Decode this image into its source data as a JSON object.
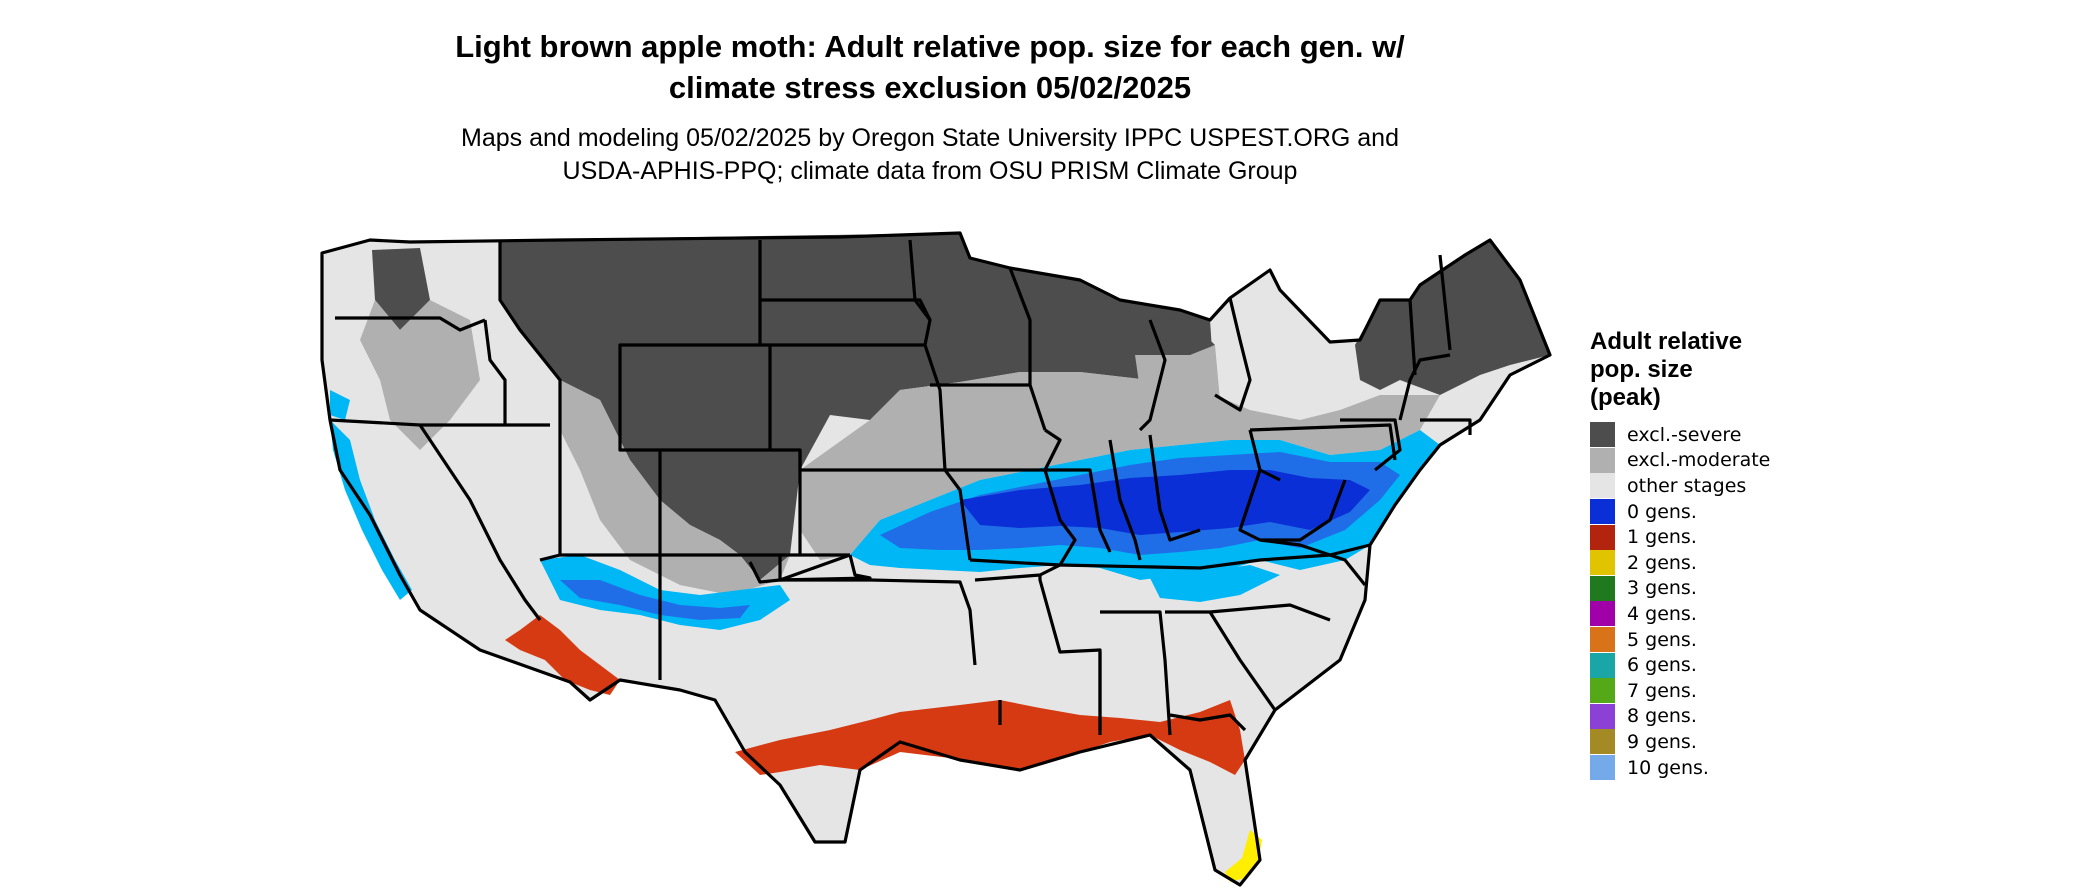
{
  "title": "Light brown apple moth: Adult relative pop. size for each gen. w/\nclimate stress exclusion 05/02/2025",
  "subtitle": "Maps and modeling 05/02/2025 by Oregon State University IPPC USPEST.ORG and\nUSDA-APHIS-PPQ; climate data from OSU PRISM Climate Group",
  "legend": {
    "title": "Adult relative\npop. size\n(peak)",
    "items": [
      {
        "label": "excl.-severe",
        "color": "#4d4d4d"
      },
      {
        "label": "excl.-moderate",
        "color": "#b0b0b0"
      },
      {
        "label": "other stages",
        "color": "#e5e5e5"
      },
      {
        "label": "0 gens.",
        "color": "#0a2fd6"
      },
      {
        "label": "1 gens.",
        "color": "#b3240f"
      },
      {
        "label": "2 gens.",
        "color": "#e0c400"
      },
      {
        "label": "3 gens.",
        "color": "#1f7a1f"
      },
      {
        "label": "4 gens.",
        "color": "#a000a8"
      },
      {
        "label": "5 gens.",
        "color": "#d9731a"
      },
      {
        "label": "6 gens.",
        "color": "#1aa6a6"
      },
      {
        "label": "7 gens.",
        "color": "#55a818"
      },
      {
        "label": "8 gens.",
        "color": "#8b40d6"
      },
      {
        "label": "9 gens.",
        "color": "#a38a24"
      },
      {
        "label": "10 gens.",
        "color": "#74a9ea"
      }
    ]
  },
  "map_colors": {
    "severe": "#4d4d4d",
    "moderate": "#b0b0b0",
    "other": "#e5e5e5",
    "zero_gens_dark": "#0a2fd6",
    "zero_gens_mid": "#1f6ee8",
    "zero_gens_light": "#00b7f5",
    "one_gen": "#d63a12",
    "two_gens": "#ffee00",
    "border": "#000000"
  }
}
